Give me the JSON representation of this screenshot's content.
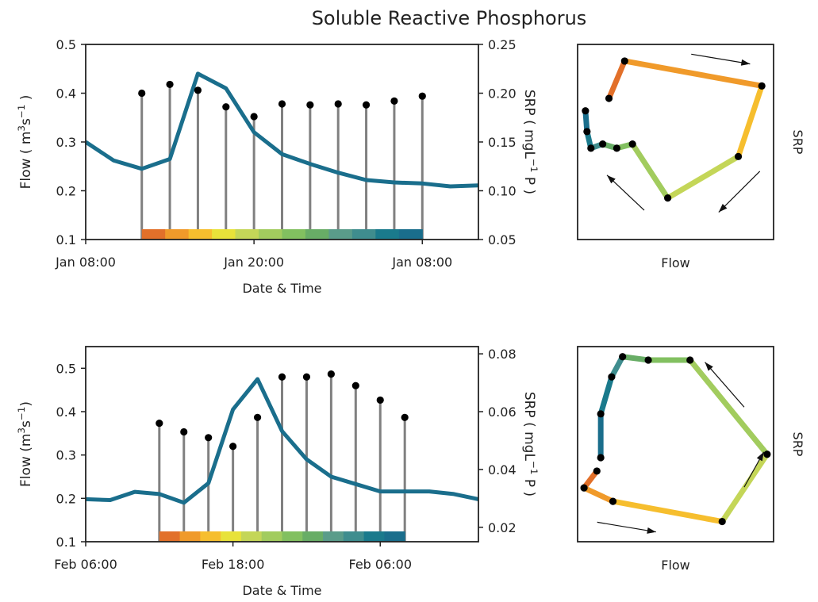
{
  "title": "Soluble Reactive Phosphorus",
  "colors": {
    "flow_line": "#1a6e8c",
    "stem": "#808080",
    "point": "#000000",
    "color_bar": [
      "#e2702a",
      "#f09a2a",
      "#f6be2e",
      "#e8e23a",
      "#c4d658",
      "#a2cc5e",
      "#82c060",
      "#68ad66",
      "#5a9c8a",
      "#3f8d8e",
      "#1a7a8c",
      "#1a6e8c"
    ]
  },
  "chart_data": [
    {
      "type": "line",
      "panel": "top-timeseries",
      "xlabel": "Date & Time",
      "ylabel_left": "Flow ( m3s-1 )",
      "ylabel_left_parts": {
        "pre": "Flow ( m",
        "sup1": "3",
        "mid": "s",
        "sup2": "−1",
        "post": " )"
      },
      "ylabel_right": "SRP ( mgL-1 P )",
      "ylabel_right_parts": {
        "pre": "SRP ( mgL",
        "sup": "−1",
        "post": " P )"
      },
      "xlim": [
        0,
        14
      ],
      "x_ticks": [
        0,
        6,
        12
      ],
      "x_ticklabels": [
        "Jan 08:00",
        "Jan 20:00",
        "Jan 08:00"
      ],
      "ylim_left": [
        0.1,
        0.5
      ],
      "yticks_left": [
        "0.1",
        "0.2",
        "0.3",
        "0.4",
        "0.5"
      ],
      "ylim_right": [
        0.05,
        0.25
      ],
      "yticks_right": [
        "0.05",
        "0.10",
        "0.15",
        "0.20",
        "0.25"
      ],
      "flow": {
        "x": [
          0,
          1,
          2,
          3,
          4,
          5,
          6,
          7,
          8,
          9,
          10,
          11,
          12,
          13,
          14
        ],
        "y": [
          0.3,
          0.262,
          0.245,
          0.265,
          0.44,
          0.41,
          0.32,
          0.275,
          0.255,
          0.237,
          0.222,
          0.217,
          0.215,
          0.209,
          0.211
        ]
      },
      "srp": {
        "x": [
          2,
          3,
          4,
          5,
          6,
          7,
          8,
          9,
          10,
          11,
          12
        ],
        "y": [
          0.2,
          0.209,
          0.203,
          0.186,
          0.176,
          0.189,
          0.188,
          0.189,
          0.188,
          0.192,
          0.197
        ]
      }
    },
    {
      "type": "scatter",
      "panel": "top-hysteresis",
      "xlabel": "Flow",
      "ylabel": "SRP",
      "flow": [
        0.245,
        0.265,
        0.44,
        0.41,
        0.32,
        0.275,
        0.255,
        0.237,
        0.222,
        0.217,
        0.215
      ],
      "srp": [
        0.2,
        0.209,
        0.203,
        0.186,
        0.176,
        0.189,
        0.188,
        0.189,
        0.188,
        0.192,
        0.197
      ],
      "xlim": [
        0.205,
        0.455
      ],
      "ylim": [
        0.166,
        0.213
      ]
    },
    {
      "type": "line",
      "panel": "bottom-timeseries",
      "xlabel": "Date & Time",
      "ylabel_left": "Flow (m3s-1)",
      "ylabel_left_parts": {
        "pre": "Flow (m",
        "sup1": "3",
        "mid": "s",
        "sup2": "−1",
        "post": ")"
      },
      "ylabel_right": "SRP ( mgL-1 P )",
      "ylabel_right_parts": {
        "pre": "SRP ( mgL",
        "sup": "−1",
        "post": " P )"
      },
      "xlim": [
        0,
        16
      ],
      "x_ticks": [
        0,
        6,
        12
      ],
      "x_ticklabels": [
        "Feb 06:00",
        "Feb 18:00",
        "Feb 06:00"
      ],
      "ylim_left": [
        0.1,
        0.55
      ],
      "yticks_left": [
        "0.1",
        "0.2",
        "0.3",
        "0.4",
        "0.5"
      ],
      "ylim_right": [
        0.015,
        0.0825
      ],
      "yticks_right": [
        "0.02",
        "0.04",
        "0.06",
        "0.08"
      ],
      "flow": {
        "x": [
          0,
          1,
          2,
          3,
          4,
          5,
          6,
          7,
          8,
          9,
          10,
          11,
          12,
          13,
          14,
          15,
          16
        ],
        "y": [
          0.198,
          0.196,
          0.215,
          0.21,
          0.19,
          0.235,
          0.405,
          0.475,
          0.355,
          0.29,
          0.25,
          0.233,
          0.216,
          0.216,
          0.216,
          0.21,
          0.198
        ]
      },
      "srp": {
        "x": [
          3,
          4,
          5,
          6,
          7,
          8,
          9,
          10,
          11,
          12,
          13
        ],
        "y": [
          0.056,
          0.053,
          0.051,
          0.048,
          0.058,
          0.072,
          0.072,
          0.073,
          0.069,
          0.064,
          0.058
        ]
      }
    },
    {
      "type": "scatter",
      "panel": "bottom-hysteresis",
      "xlabel": "Flow",
      "ylabel": "SRP",
      "flow": [
        0.21,
        0.19,
        0.235,
        0.405,
        0.475,
        0.355,
        0.29,
        0.25,
        0.233,
        0.216,
        0.216
      ],
      "srp": [
        0.0555,
        0.053,
        0.051,
        0.048,
        0.058,
        0.072,
        0.072,
        0.0725,
        0.0695,
        0.064,
        0.0575
      ],
      "xlim": [
        0.18,
        0.485
      ],
      "ylim": [
        0.045,
        0.074
      ]
    }
  ]
}
